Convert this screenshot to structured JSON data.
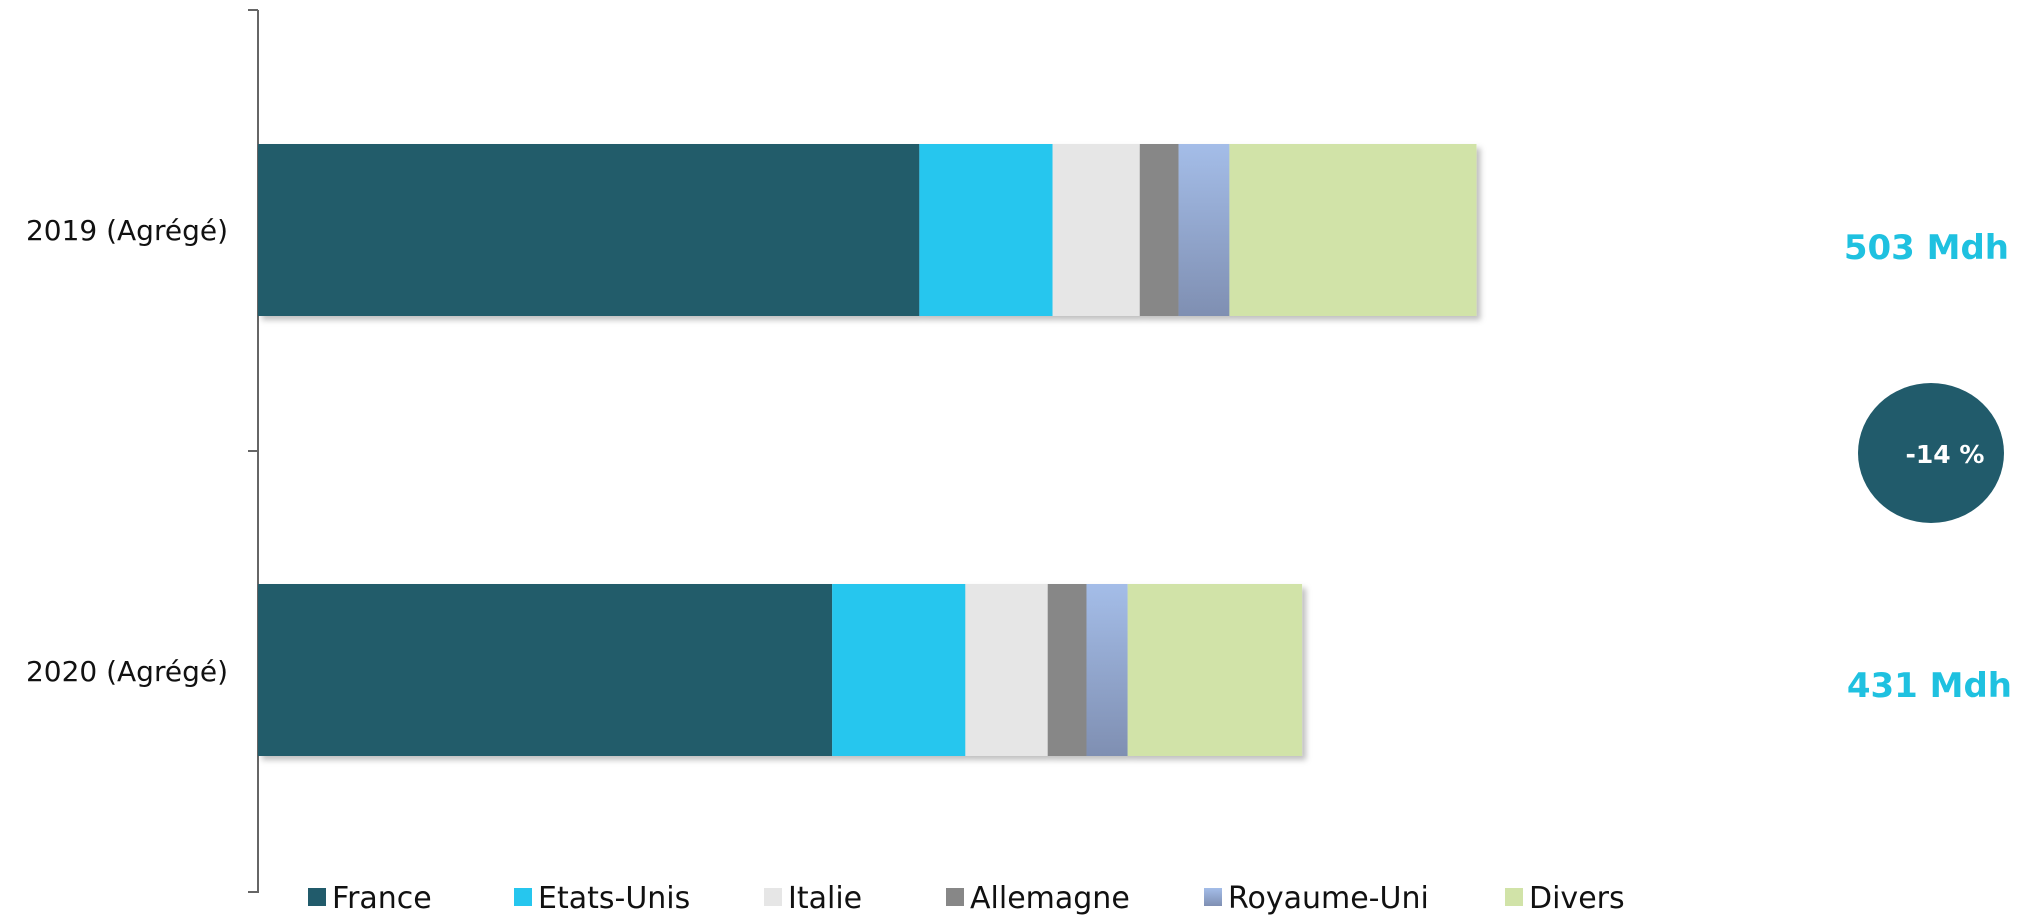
{
  "chart_data": {
    "type": "bar",
    "orientation": "horizontal",
    "stacked": true,
    "categories": [
      "2019 (Agrégé)",
      "2020 (Agrégé)"
    ],
    "series": [
      {
        "name": "France",
        "color": "#215b6b",
        "values": [
          273,
          237
        ]
      },
      {
        "name": "Etats-Unis",
        "color": "#26c6ee",
        "values": [
          55,
          55
        ]
      },
      {
        "name": "Italie",
        "color": "#e6e6e6",
        "values": [
          36,
          34
        ]
      },
      {
        "name": "Allemagne",
        "color": "#878787",
        "values": [
          16,
          16
        ]
      },
      {
        "name": "Royaume-Uni",
        "color": "#93a9d4",
        "values": [
          21,
          17
        ]
      },
      {
        "name": "Divers",
        "color": "#d1e3a8",
        "values": [
          102,
          72
        ]
      }
    ],
    "totals": [
      "503 Mdh",
      "431 Mdh"
    ],
    "change_badge": "-14 %",
    "xlim": [
      0,
      703
    ],
    "grid": false,
    "legend_position": "bottom"
  },
  "colors": {
    "total_label": "#1fc1e0",
    "badge": "#215b6b",
    "axis": "#666666"
  }
}
